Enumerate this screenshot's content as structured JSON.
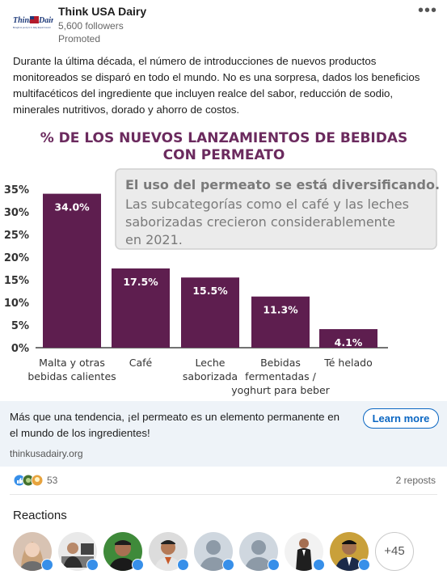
{
  "header": {
    "brand": "Think USA Dairy",
    "followers": "5,600 followers",
    "promoted": "Promoted",
    "more": "•••",
    "logo": {
      "line1": "Think",
      "line2": "Dairy",
      "tagline": "Brought to you by U.S. Dairy Export Council"
    }
  },
  "post_text": "Durante la última década, el número de introducciones de nuevos productos monitoreados se disparó en todo el mundo. No es una sorpresa, dados los beneficios multifacéticos del ingrediente que incluyen realce del sabor, reducción de sodio, minerales nutritivos, dorado y ahorro de costos.",
  "chart_data": {
    "type": "bar",
    "title_line1": "% DE LOS NUEVOS LANZAMIENTOS DE BEBIDAS",
    "title_line2": "CON PERMEATO",
    "callout_bold": "El uso del permeato se está diversificando.",
    "callout_lines": [
      "Las subcategorías como el café y las leches",
      "saborizadas crecieron considerablemente",
      "en 2021."
    ],
    "categories": [
      [
        "Malta y otras",
        "bebidas calientes"
      ],
      [
        "Café"
      ],
      [
        "Leche",
        "saborizada"
      ],
      [
        "Bebidas",
        "fermentadas /",
        "yoghurt para beber"
      ],
      [
        "Té helado"
      ]
    ],
    "values": [
      34.0,
      17.5,
      15.5,
      11.3,
      4.1
    ],
    "value_labels": [
      "34.0%",
      "17.5%",
      "15.5%",
      "11.3%",
      "4.1%"
    ],
    "yticks": [
      0,
      5,
      10,
      15,
      20,
      25,
      30,
      35
    ],
    "ytick_labels": [
      "0%",
      "5%",
      "10%",
      "15%",
      "20%",
      "25%",
      "30%",
      "35%"
    ],
    "ylim": [
      0,
      35
    ],
    "bar_color": "#5e1e4f",
    "title_color": "#6b2a5e"
  },
  "banner": {
    "title": "Más que una tendencia, ¡el permeato es un elemento permanente en el mundo de los ingredientes!",
    "domain": "thinkusadairy.org",
    "button": "Learn more"
  },
  "social": {
    "reaction_count": "53",
    "reposts": "2 reposts"
  },
  "reactions": {
    "title": "Reactions",
    "more": "+45",
    "avatar_icons": [
      "person-photo-icon",
      "person-photo-icon",
      "person-photo-icon",
      "person-photo-icon",
      "default-avatar-icon",
      "default-avatar-icon",
      "person-photo-icon",
      "person-photo-icon"
    ]
  },
  "colors": {
    "accent": "#0a66c2",
    "banner_bg": "#eef3f8",
    "like_blue": "#378fe9"
  }
}
